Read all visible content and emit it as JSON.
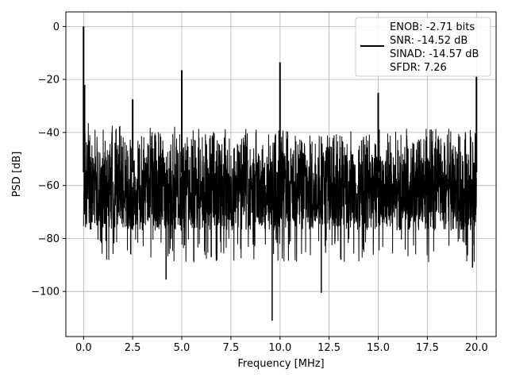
{
  "chart_data": {
    "type": "line",
    "title": "",
    "xlabel": "Frequency [MHz]",
    "ylabel": "PSD [dB]",
    "xlim": [
      -0.9,
      21.0
    ],
    "ylim": [
      -117,
      5.5
    ],
    "x_ticks": [
      0.0,
      2.5,
      5.0,
      7.5,
      10.0,
      12.5,
      15.0,
      17.5,
      20.0
    ],
    "x_tick_labels": [
      "0.0",
      "2.5",
      "5.0",
      "7.5",
      "10.0",
      "12.5",
      "15.0",
      "17.5",
      "20.0"
    ],
    "y_ticks": [
      0,
      -20,
      -40,
      -60,
      -80,
      -100
    ],
    "y_tick_labels": [
      "0",
      "−20",
      "−40",
      "−60",
      "−80",
      "−100"
    ],
    "grid": true,
    "legend_position": "top-right",
    "legend_lines": [
      "ENOB: -2.71 bits",
      "SNR: -14.52 dB",
      "SINAD: -14.57 dB",
      "SFDR: 7.26"
    ],
    "series": [
      {
        "color": "#000000",
        "noise_floor": {
          "x_range": [
            0.0,
            20.0
          ],
          "upper_envelope_db": -36,
          "typical_lower_db": -75
        },
        "spikes": [
          {
            "x": 0.0,
            "y": 0.0
          },
          {
            "x": 0.05,
            "y": -22
          },
          {
            "x": 2.5,
            "y": -27.5
          },
          {
            "x": 5.0,
            "y": -16.5
          },
          {
            "x": 10.0,
            "y": -13.5
          },
          {
            "x": 15.0,
            "y": -25
          },
          {
            "x": 20.0,
            "y": -19
          }
        ],
        "dips": [
          {
            "x": 2.4,
            "y": -86
          },
          {
            "x": 4.2,
            "y": -95.5
          },
          {
            "x": 6.5,
            "y": -87
          },
          {
            "x": 9.6,
            "y": -111
          },
          {
            "x": 12.1,
            "y": -100.5
          },
          {
            "x": 13.1,
            "y": -88
          },
          {
            "x": 19.8,
            "y": -91
          }
        ]
      }
    ]
  }
}
